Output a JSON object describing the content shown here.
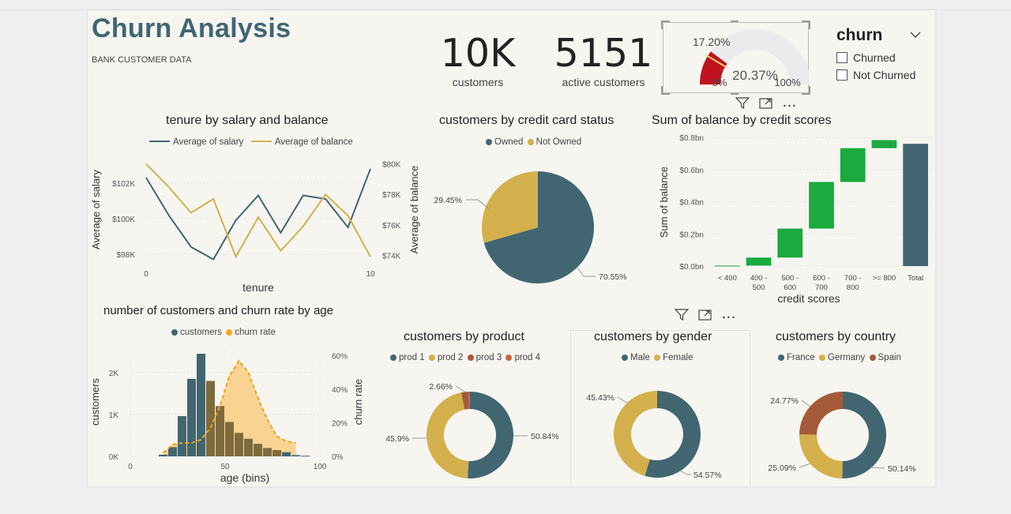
{
  "report": {
    "title": "Churn Analysis",
    "subtitle": "BANK CUSTOMER DATA"
  },
  "kpis": [
    {
      "value": "10K",
      "label": "customers"
    },
    {
      "value": "5151",
      "label": "active customers"
    }
  ],
  "gauge": {
    "value_label": "20.37%",
    "target_label": "17.20%",
    "min_label": "0%",
    "max_label": "100%",
    "value": 20.37,
    "target": 17.2,
    "color": "#c1121f"
  },
  "slicer": {
    "title": "churn",
    "options": [
      "Churned",
      "Not Churned"
    ]
  },
  "colors": {
    "teal": "#416672",
    "gold": "#d4b04c",
    "rust": "#a45a38",
    "orange": "#f5a623",
    "green": "#1aaa3e"
  },
  "chart_data": [
    {
      "id": "tenure",
      "type": "line",
      "title": "tenure by salary and balance",
      "xlabel": "tenure",
      "ylabel": "Average of salary",
      "y2label": "Average of balance",
      "x": [
        0,
        1,
        2,
        3,
        4,
        5,
        6,
        7,
        8,
        9,
        10
      ],
      "x_ticks": [
        "0",
        "10"
      ],
      "y_ticks": [
        "$98K",
        "$100K",
        "$102K"
      ],
      "y2_ticks": [
        "$74K",
        "$76K",
        "$78K",
        "$80K"
      ],
      "series": [
        {
          "name": "Average of salary",
          "axis": "left",
          "color": "#416672",
          "values": [
            102300,
            100200,
            98400,
            97700,
            99900,
            101300,
            99200,
            101300,
            101100,
            99500,
            102800
          ]
        },
        {
          "name": "Average of balance",
          "axis": "right",
          "color": "#d4b04c",
          "values": [
            80000,
            78500,
            76800,
            77700,
            73900,
            76500,
            74300,
            75900,
            78000,
            76600,
            73900
          ]
        }
      ],
      "ylim": [
        97500,
        103500
      ],
      "y2lim": [
        73500,
        80500
      ]
    },
    {
      "id": "credit_card",
      "type": "pie",
      "title": "customers by credit card status",
      "labels": [
        "Owned",
        "Not Owned"
      ],
      "values": [
        70.55,
        29.45
      ],
      "value_labels": [
        "70.55%",
        "29.45%"
      ],
      "colors": [
        "#416672",
        "#d4b04c"
      ]
    },
    {
      "id": "waterfall",
      "type": "bar",
      "title": "Sum of balance by credit scores",
      "xlabel": "credit scores",
      "ylabel": "Sum of balance",
      "categories": [
        "< 400",
        "400 - 500",
        "500 - 600",
        "600 - 700",
        "700 - 800",
        ">= 800",
        "Total"
      ],
      "deltas": [
        0.003,
        0.05,
        0.18,
        0.29,
        0.21,
        0.05,
        0.76
      ],
      "y_ticks": [
        "$0.0bn",
        "$0.2bn",
        "$0.4bn",
        "$0.6bn",
        "$0.8bn"
      ],
      "ylim": [
        0,
        0.8
      ]
    },
    {
      "id": "age",
      "type": "bar",
      "title": "number of customers and churn rate by age",
      "xlabel": "age (bins)",
      "ylabel": "customers",
      "y2label": "churn rate",
      "legend": [
        "customers",
        "churn rate"
      ],
      "x_ticks": [
        "0",
        "50",
        "100"
      ],
      "y_ticks": [
        "0K",
        "1K",
        "2K"
      ],
      "y2_ticks": [
        "0%",
        "20%",
        "40%",
        "60%"
      ],
      "bins": [
        15,
        20,
        25,
        30,
        35,
        40,
        45,
        50,
        55,
        60,
        65,
        70,
        75,
        80,
        85,
        90
      ],
      "customers": [
        40,
        220,
        960,
        1850,
        2450,
        1800,
        1200,
        820,
        560,
        420,
        300,
        200,
        150,
        100,
        30,
        15
      ],
      "churn_rate": [
        2,
        7,
        8,
        8,
        10,
        17,
        30,
        48,
        57,
        50,
        35,
        22,
        12,
        9,
        8,
        null
      ]
    },
    {
      "id": "product",
      "type": "pie",
      "title": "customers by product",
      "labels": [
        "prod 1",
        "prod 2",
        "prod 3",
        "prod 4"
      ],
      "values": [
        50.84,
        45.9,
        2.66,
        0.6
      ],
      "value_labels": [
        "50.84%",
        "45.9%",
        "2.66%",
        ""
      ],
      "colors": [
        "#416672",
        "#d4b04c",
        "#a45a38",
        "#c8663f"
      ]
    },
    {
      "id": "gender",
      "type": "pie",
      "title": "customers by gender",
      "labels": [
        "Male",
        "Female"
      ],
      "values": [
        54.57,
        45.43
      ],
      "value_labels": [
        "54.57%",
        "45.43%"
      ],
      "colors": [
        "#416672",
        "#d4b04c"
      ]
    },
    {
      "id": "country",
      "type": "pie",
      "title": "customers by country",
      "labels": [
        "France",
        "Germany",
        "Spain"
      ],
      "values": [
        50.14,
        25.09,
        24.77
      ],
      "value_labels": [
        "50.14%",
        "25.09%",
        "24.77%"
      ],
      "colors": [
        "#416672",
        "#d4b04c",
        "#a45a38"
      ]
    }
  ]
}
